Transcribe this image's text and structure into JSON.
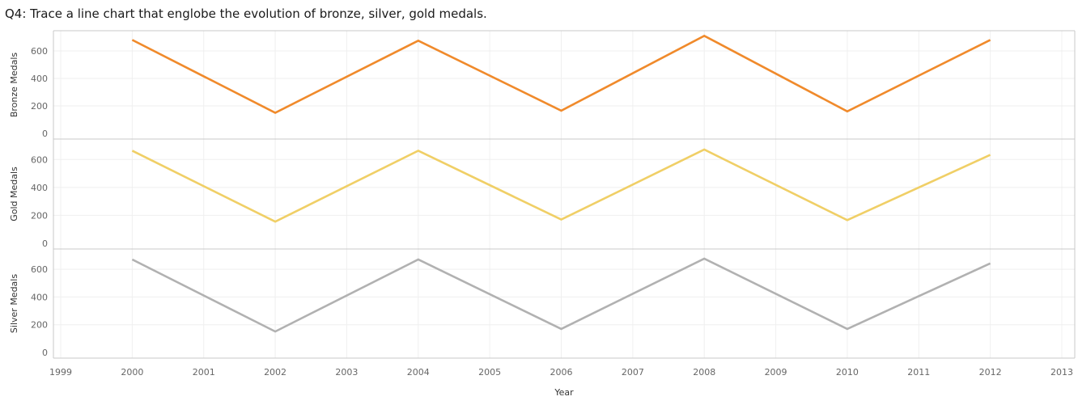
{
  "title": "Q4: Trace a line chart that englobe the evolution of bronze, silver, gold medals.",
  "chart_data": {
    "type": "line",
    "xlabel": "Year",
    "xlim": [
      1999,
      2013
    ],
    "x_ticks": [
      "1999",
      "2000",
      "2001",
      "2002",
      "2003",
      "2004",
      "2005",
      "2006",
      "2007",
      "2008",
      "2009",
      "2010",
      "2011",
      "2012",
      "2013"
    ],
    "x": [
      2000,
      2002,
      2004,
      2006,
      2008,
      2010,
      2012
    ],
    "ylim": [
      0,
      700
    ],
    "y_ticks": [
      "0",
      "200",
      "400",
      "600"
    ],
    "grid": true,
    "series": [
      {
        "name": "Bronze Medals",
        "ylabel": "Bronze Medals",
        "color": "#f08a2b",
        "values": [
          680,
          150,
          675,
          165,
          710,
          160,
          680
        ]
      },
      {
        "name": "Gold Medals",
        "ylabel": "Gold Medals",
        "color": "#f0cf66",
        "values": [
          663,
          155,
          663,
          170,
          671,
          166,
          633
        ]
      },
      {
        "name": "Silver Medals",
        "ylabel": "Silver Medals",
        "color": "#b1b1b1",
        "values": [
          671,
          151,
          671,
          170,
          677,
          170,
          643
        ]
      }
    ]
  }
}
